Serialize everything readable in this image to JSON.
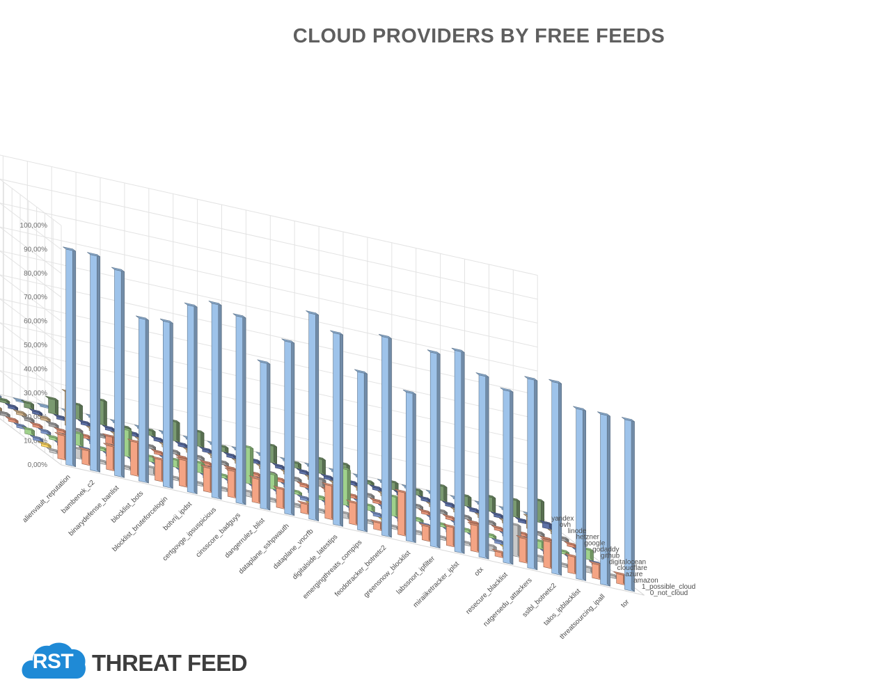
{
  "chart_data": {
    "type": "bar",
    "subtype": "3d-column",
    "title": "CLOUD PROVIDERS BY FREE FEEDS",
    "xlabel": "",
    "ylabel": "",
    "ylim": [
      0,
      100
    ],
    "y_ticks": [
      "0,00%",
      "10,00%",
      "20,00%",
      "30,00%",
      "40,00%",
      "50,00%",
      "60,00%",
      "70,00%",
      "80,00%",
      "90,00%",
      "100,00%"
    ],
    "grid": true,
    "legend": "none",
    "categories": [
      "alienvault_reputation",
      "bambenek_c2",
      "binarydefense_banlist",
      "blocklist_bots",
      "blocklist_bruteforcelogin",
      "botvrij_ipdst",
      "certgovge_ipsuspicious",
      "cinsscore_badguys",
      "dangerrulez_blist",
      "dataplane_sshpwauth",
      "dataplane_vncrfb",
      "digitalside_latestips",
      "emergingthreats_compips",
      "feodotracker_botnetc2",
      "greensnow_blocklist",
      "labssnort_ipfilter",
      "miraiiketracker_iplst",
      "otx",
      "resecure_blacklist",
      "rutgersedu_attackers",
      "sslbl_botnetc2",
      "talos_ipblacklist",
      "threatsourcing_ipall",
      "tor"
    ],
    "series": [
      {
        "name": "0_not_cloud",
        "color": "#9ec3ea",
        "values": [
          90,
          90,
          86,
          68,
          69,
          78,
          81,
          78,
          61,
          72,
          86,
          80,
          66,
          83,
          62,
          81,
          84,
          76,
          72,
          79,
          80,
          71,
          71,
          71
        ]
      },
      {
        "name": "1_possible_cloud",
        "color": "#f4a484",
        "values": [
          10,
          6,
          10,
          14,
          9,
          11,
          10,
          11,
          10,
          8,
          4,
          14,
          9,
          3,
          18,
          6,
          8,
          11,
          2,
          10,
          11,
          7,
          6,
          4
        ]
      },
      {
        "name": "amazon",
        "color": "#c9c9c9",
        "values": [
          1,
          4,
          1,
          1,
          3,
          1,
          1,
          1,
          2,
          1,
          1,
          1,
          2,
          1,
          1,
          1,
          1,
          1,
          2,
          13,
          2,
          1,
          2,
          1
        ]
      },
      {
        "name": "azure",
        "color": "#ffd966",
        "values": [
          1,
          1,
          1,
          1,
          1,
          1,
          1,
          1,
          1,
          1,
          1,
          1,
          1,
          1,
          1,
          1,
          1,
          1,
          1,
          1,
          1,
          1,
          1,
          1
        ]
      },
      {
        "name": "cloudflare",
        "color": "#7f98cc",
        "values": [
          1,
          1,
          1,
          1,
          1,
          1,
          1,
          1,
          1,
          1,
          1,
          1,
          1,
          1,
          1,
          1,
          1,
          1,
          1,
          1,
          1,
          1,
          1,
          1
        ]
      },
      {
        "name": "digitalocean",
        "color": "#9fd18b",
        "values": [
          2,
          1,
          5,
          1,
          11,
          2,
          3,
          4,
          1,
          15,
          6,
          1,
          1,
          15,
          2,
          8,
          1,
          1,
          1,
          1,
          6,
          3,
          1,
          4
        ]
      },
      {
        "name": "github",
        "color": "#7f98cc",
        "values": [
          1,
          1,
          1,
          1,
          1,
          1,
          1,
          1,
          1,
          1,
          1,
          1,
          1,
          1,
          1,
          1,
          1,
          1,
          1,
          1,
          1,
          1,
          1,
          1
        ]
      },
      {
        "name": "godaddy",
        "color": "#e8967a",
        "values": [
          1,
          1,
          1,
          1,
          3,
          1,
          1,
          1,
          1,
          1,
          1,
          1,
          1,
          1,
          1,
          1,
          1,
          1,
          1,
          1,
          1,
          1,
          1,
          1
        ]
      },
      {
        "name": "google",
        "color": "#a6a6a6",
        "values": [
          1,
          1,
          1,
          1,
          1,
          3,
          1,
          1,
          1,
          1,
          1,
          1,
          1,
          3,
          1,
          1,
          1,
          1,
          1,
          1,
          1,
          1,
          1,
          1
        ]
      },
      {
        "name": "hetzner",
        "color": "#d2b48c",
        "values": [
          1,
          1,
          1,
          14,
          1,
          1,
          1,
          1,
          1,
          1,
          1,
          1,
          1,
          1,
          1,
          1,
          1,
          1,
          1,
          1,
          1,
          1,
          5,
          1
        ]
      },
      {
        "name": "linode",
        "color": "#5e72a8",
        "values": [
          1,
          1,
          1,
          1,
          1,
          1,
          1,
          1,
          1,
          1,
          1,
          1,
          1,
          1,
          1,
          1,
          1,
          1,
          1,
          1,
          1,
          1,
          1,
          2
        ]
      },
      {
        "name": "ovh",
        "color": "#7a9a70",
        "values": [
          2,
          1,
          2,
          6,
          6,
          10,
          1,
          2,
          8,
          6,
          2,
          1,
          7,
          2,
          6,
          6,
          1,
          3,
          2,
          6,
          4,
          6,
          7,
          9
        ]
      },
      {
        "name": "yandex",
        "color": "#9ec3ea",
        "values": [
          0.5,
          0.5,
          0.5,
          0.5,
          0.5,
          0.5,
          0.5,
          0.5,
          0.5,
          0.5,
          0.5,
          0.5,
          0.5,
          0.5,
          0.5,
          0.5,
          0.5,
          0.5,
          0.5,
          0.5,
          0.5,
          0.5,
          0.5,
          0.5
        ]
      }
    ]
  },
  "logo": {
    "badge": "RST",
    "text": "THREAT FEED",
    "color": "#1f8ad6"
  }
}
